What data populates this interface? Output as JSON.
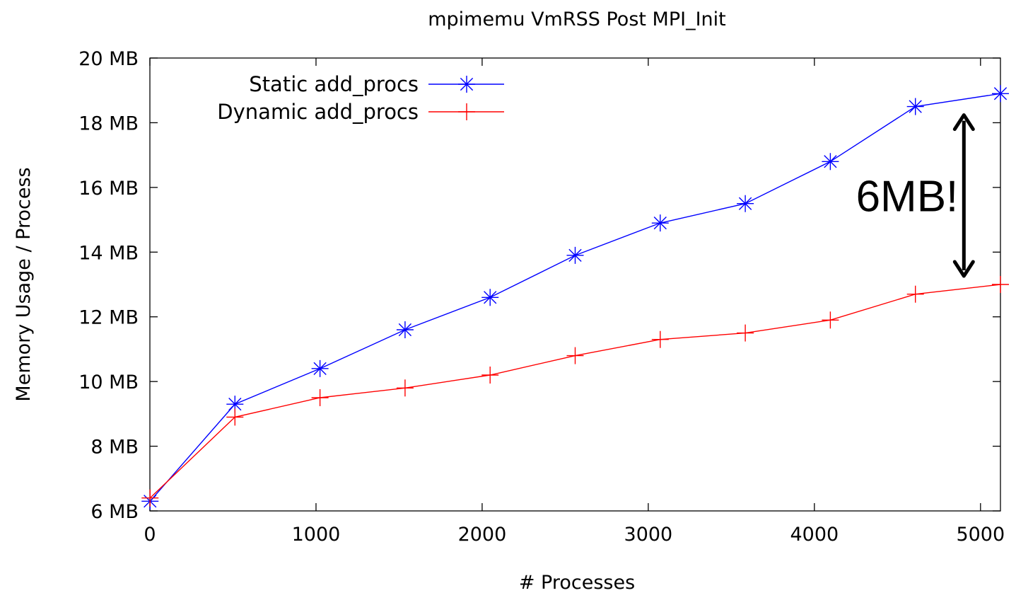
{
  "chart_data": {
    "type": "line",
    "title": "mpimemu VmRSS Post MPI_Init",
    "xlabel": "# Processes",
    "ylabel": "Memory Usage / Process",
    "xlim": [
      0,
      5120
    ],
    "ylim": [
      6,
      20
    ],
    "x_ticks": [
      {
        "value": 0,
        "label": "0"
      },
      {
        "value": 1000,
        "label": "1000"
      },
      {
        "value": 2000,
        "label": "2000"
      },
      {
        "value": 3000,
        "label": "3000"
      },
      {
        "value": 4000,
        "label": "4000"
      },
      {
        "value": 5000,
        "label": "5000"
      }
    ],
    "y_ticks": [
      {
        "value": 6,
        "label": "6 MB"
      },
      {
        "value": 8,
        "label": "8 MB"
      },
      {
        "value": 10,
        "label": "10 MB"
      },
      {
        "value": 12,
        "label": "12 MB"
      },
      {
        "value": 14,
        "label": "14 MB"
      },
      {
        "value": 16,
        "label": "16 MB"
      },
      {
        "value": 18,
        "label": "18 MB"
      },
      {
        "value": 20,
        "label": "20 MB"
      }
    ],
    "grid": false,
    "legend_position": "top-left",
    "series": [
      {
        "name": "Static add_procs",
        "color": "#0000ff",
        "marker": "asterisk",
        "x": [
          1,
          512,
          1024,
          1536,
          2048,
          2560,
          3072,
          3584,
          4096,
          4608,
          5120
        ],
        "y": [
          6.3,
          9.3,
          10.4,
          11.6,
          12.6,
          13.9,
          14.9,
          15.5,
          16.8,
          18.5,
          18.9
        ]
      },
      {
        "name": "Dynamic add_procs",
        "color": "#ff0000",
        "marker": "plus",
        "x": [
          1,
          512,
          1024,
          1536,
          2048,
          2560,
          3072,
          3584,
          4096,
          4608,
          5120
        ],
        "y": [
          6.4,
          8.9,
          9.5,
          9.8,
          10.2,
          10.8,
          11.3,
          11.5,
          11.9,
          12.7,
          13.0
        ]
      }
    ],
    "annotations": [
      {
        "text": "6MB!",
        "x": 4900,
        "y_from": 18.5,
        "y_to": 13.0
      }
    ]
  }
}
